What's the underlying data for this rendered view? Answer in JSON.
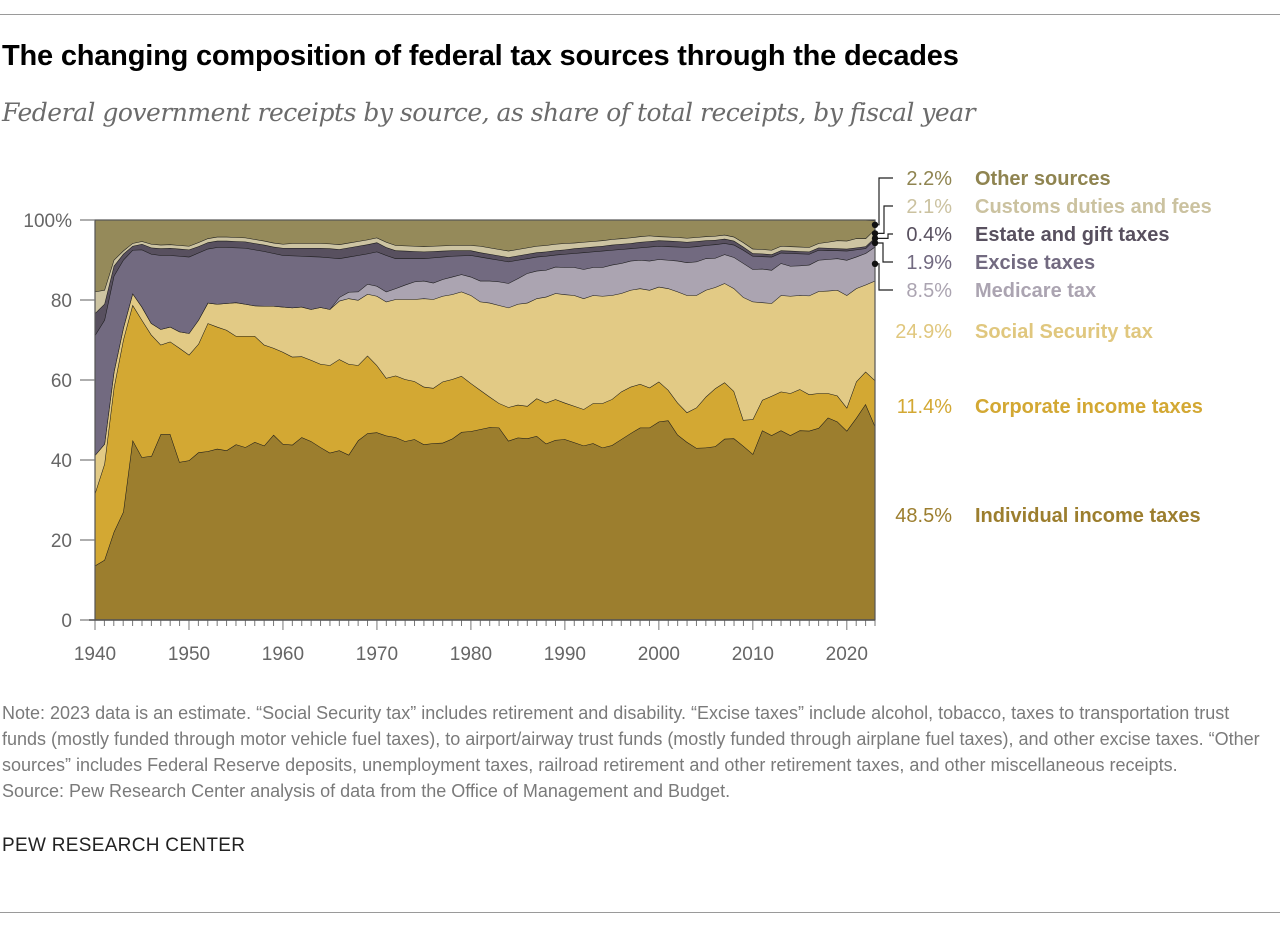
{
  "title": "The changing composition of federal tax sources through the decades",
  "subtitle": "Federal government receipts by source, as share of total receipts, by fiscal year",
  "note": "Note: 2023 data is an estimate. “Social Security tax” includes retirement and disability. “Excise taxes” include alcohol, tobacco, taxes to transportation trust funds (mostly funded through motor vehicle fuel taxes), to airport/airway trust funds (mostly funded through airplane fuel taxes), and other excise taxes. “Other sources” includes Federal Reserve deposits, unemployment taxes, railroad retirement and other retirement taxes, and other miscellaneous receipts.",
  "source": "Source: Pew Research Center analysis of data from the Office of Management and Budget.",
  "brand": "PEW RESEARCH CENTER",
  "chart_data": {
    "type": "area",
    "stacked": true,
    "xlim": [
      1940,
      2023
    ],
    "ylim": [
      0,
      100
    ],
    "x_ticks": [
      "1940",
      "1950",
      "1960",
      "1970",
      "1980",
      "1990",
      "2000",
      "2010",
      "2020"
    ],
    "y_ticks": [
      "0",
      "20",
      "40",
      "60",
      "80",
      "100%"
    ],
    "grid": false,
    "legend": "right, direct labels with 2023 values",
    "x": [
      1940,
      1941,
      1942,
      1943,
      1944,
      1945,
      1946,
      1947,
      1948,
      1949,
      1950,
      1951,
      1952,
      1953,
      1954,
      1955,
      1956,
      1957,
      1958,
      1959,
      1960,
      1961,
      1962,
      1963,
      1964,
      1965,
      1966,
      1967,
      1968,
      1969,
      1970,
      1971,
      1972,
      1973,
      1974,
      1975,
      1976,
      1977,
      1978,
      1979,
      1980,
      1981,
      1982,
      1983,
      1984,
      1985,
      1986,
      1987,
      1988,
      1989,
      1990,
      1991,
      1992,
      1993,
      1994,
      1995,
      1996,
      1997,
      1998,
      1999,
      2000,
      2001,
      2002,
      2003,
      2004,
      2005,
      2006,
      2007,
      2008,
      2009,
      2010,
      2011,
      2012,
      2013,
      2014,
      2015,
      2016,
      2017,
      2018,
      2019,
      2020,
      2021,
      2022,
      2023
    ],
    "series": [
      {
        "name": "Individual income taxes",
        "label": "48.5%",
        "color": "#9c7e2e",
        "text_color": "#9c7e2e",
        "values": [
          13.6,
          15.0,
          22.0,
          27.0,
          45.0,
          40.7,
          41.0,
          46.5,
          46.5,
          39.5,
          39.9,
          41.9,
          42.2,
          42.8,
          42.4,
          43.9,
          43.2,
          44.5,
          43.6,
          46.3,
          44.0,
          43.8,
          45.7,
          44.7,
          43.2,
          41.8,
          42.4,
          41.3,
          44.9,
          46.7,
          46.9,
          46.1,
          45.7,
          44.7,
          45.2,
          43.9,
          44.2,
          44.3,
          45.3,
          47.0,
          47.2,
          47.7,
          48.2,
          48.1,
          44.8,
          45.6,
          45.4,
          46.0,
          44.1,
          45.0,
          45.2,
          44.4,
          43.6,
          44.2,
          43.1,
          43.7,
          45.2,
          46.7,
          48.1,
          48.1,
          49.6,
          49.9,
          46.3,
          44.5,
          43.0,
          43.1,
          43.4,
          45.3,
          45.4,
          43.5,
          41.5,
          47.4,
          46.2,
          47.4,
          46.2,
          47.4,
          47.3,
          48.0,
          50.6,
          49.6,
          47.3,
          50.5,
          54.0,
          48.5
        ]
      },
      {
        "name": "Corporate income taxes",
        "label": "11.4%",
        "color": "#d3a833",
        "text_color": "#d3a833",
        "values": [
          18.1,
          24.0,
          36.0,
          43.0,
          33.8,
          34.3,
          30.3,
          22.3,
          23.1,
          28.5,
          26.4,
          27.1,
          32.0,
          30.5,
          30.1,
          27.1,
          27.8,
          26.5,
          25.2,
          21.7,
          23.0,
          22.0,
          20.2,
          20.3,
          20.8,
          21.9,
          22.8,
          22.7,
          18.8,
          19.4,
          16.8,
          14.4,
          15.4,
          15.5,
          14.5,
          14.4,
          13.8,
          15.3,
          14.9,
          14.0,
          12.0,
          9.8,
          7.6,
          6.1,
          8.4,
          8.2,
          8.1,
          9.4,
          10.2,
          10.2,
          9.1,
          9.1,
          9.1,
          10.0,
          11.1,
          11.5,
          11.9,
          11.6,
          10.9,
          10.0,
          10.0,
          7.6,
          8.0,
          7.4,
          10.1,
          12.7,
          14.5,
          14.1,
          11.8,
          6.5,
          8.7,
          7.6,
          9.8,
          9.7,
          10.5,
          10.3,
          9.1,
          8.7,
          6.1,
          6.5,
          5.8,
          9.1,
          8.1,
          11.4
        ]
      },
      {
        "name": "Social Security tax",
        "label": "24.9%",
        "color": "#e2ca85",
        "text_color": "#e0c77e",
        "values": [
          9.5,
          5.0,
          4.0,
          3.0,
          2.9,
          3.3,
          2.9,
          3.9,
          3.7,
          4.1,
          5.4,
          6.0,
          5.1,
          5.7,
          6.7,
          8.4,
          8.0,
          7.6,
          9.7,
          10.5,
          11.3,
          12.3,
          12.4,
          12.7,
          14.2,
          14.0,
          14.6,
          16.4,
          16.3,
          15.4,
          17.3,
          19.1,
          19.1,
          20.0,
          20.5,
          22.1,
          22.2,
          21.4,
          21.2,
          21.1,
          22.0,
          22.1,
          23.5,
          24.5,
          24.9,
          25.2,
          25.8,
          25.0,
          26.5,
          26.5,
          27.1,
          27.7,
          27.7,
          27.0,
          26.8,
          26.0,
          24.6,
          24.2,
          23.9,
          24.4,
          23.7,
          25.4,
          27.8,
          29.3,
          28.1,
          26.7,
          25.3,
          24.8,
          25.7,
          30.7,
          29.4,
          24.4,
          23.2,
          24.1,
          24.3,
          23.5,
          24.7,
          25.5,
          25.6,
          26.4,
          28.1,
          23.3,
          21.7,
          24.9
        ]
      },
      {
        "name": "Medicare tax",
        "label": "8.5%",
        "color": "#aba4b1",
        "text_color": "#aba4b1",
        "values": [
          0,
          0,
          0,
          0,
          0,
          0,
          0,
          0,
          0,
          0,
          0,
          0,
          0,
          0,
          0,
          0,
          0,
          0,
          0,
          0,
          0,
          0,
          0,
          0,
          0,
          0,
          0.9,
          1.6,
          2.1,
          2.5,
          2.5,
          2.5,
          2.7,
          3.6,
          4.4,
          4.4,
          4.1,
          4.2,
          4.4,
          4.3,
          4.6,
          5.2,
          5.5,
          5.9,
          6.1,
          6.4,
          7.4,
          6.9,
          6.7,
          6.6,
          6.8,
          7.0,
          7.3,
          7.0,
          7.2,
          7.6,
          7.5,
          7.3,
          7.1,
          7.3,
          6.9,
          7.1,
          7.7,
          8.2,
          8.4,
          7.9,
          7.3,
          7.2,
          7.8,
          8.5,
          8.1,
          8.4,
          8.3,
          8.0,
          7.5,
          7.4,
          7.7,
          7.8,
          7.9,
          7.9,
          8.8,
          7.9,
          7.9,
          8.5
        ]
      },
      {
        "name": "Excise taxes",
        "label": "1.9%",
        "color": "#726a80",
        "text_color": "#726a80",
        "values": [
          30.0,
          31.0,
          24.0,
          17.0,
          10.8,
          14.3,
          17.3,
          18.5,
          17.9,
          18.9,
          19.1,
          16.8,
          13.5,
          14.2,
          14.0,
          13.7,
          14.0,
          14.0,
          13.7,
          13.2,
          12.9,
          13.0,
          12.7,
          13.2,
          12.6,
          12.9,
          9.7,
          8.8,
          9.1,
          7.6,
          8.6,
          9.1,
          7.5,
          6.6,
          5.8,
          5.6,
          6.3,
          5.6,
          5.2,
          4.7,
          5.4,
          6.0,
          5.6,
          5.4,
          5.4,
          4.6,
          3.7,
          3.5,
          3.5,
          3.0,
          3.3,
          3.5,
          4.2,
          3.9,
          4.1,
          3.7,
          3.5,
          3.1,
          3.1,
          3.5,
          3.3,
          3.4,
          3.5,
          3.8,
          3.8,
          3.3,
          3.4,
          2.8,
          3.1,
          3.3,
          3.3,
          3.1,
          3.3,
          2.6,
          3.2,
          3.0,
          2.7,
          2.5,
          2.2,
          2.0,
          2.3,
          1.8,
          1.2,
          1.9
        ]
      },
      {
        "name": "Estate and gift taxes",
        "label": "0.4%",
        "color": "#58505f",
        "text_color": "#58505f",
        "values": [
          5.5,
          4.0,
          2.5,
          1.5,
          1.0,
          1.4,
          1.6,
          1.7,
          1.8,
          1.8,
          1.8,
          1.6,
          1.6,
          1.6,
          1.6,
          1.6,
          1.6,
          1.6,
          1.6,
          1.6,
          1.8,
          1.9,
          2.0,
          2.1,
          2.2,
          2.3,
          2.3,
          2.3,
          2.3,
          2.3,
          2.3,
          2.0,
          2.0,
          1.9,
          1.8,
          1.7,
          1.6,
          1.5,
          1.4,
          1.3,
          1.2,
          1.1,
          1.1,
          1.1,
          1.1,
          1.1,
          1.1,
          1.1,
          1.1,
          1.1,
          1.1,
          1.2,
          1.2,
          1.2,
          1.2,
          1.3,
          1.3,
          1.3,
          1.4,
          1.4,
          1.4,
          1.4,
          1.4,
          1.3,
          1.3,
          1.2,
          1.1,
          1.1,
          1.0,
          0.8,
          0.7,
          0.7,
          0.6,
          0.6,
          0.6,
          0.6,
          0.6,
          0.6,
          0.6,
          0.5,
          0.5,
          0.5,
          0.5,
          0.4
        ]
      },
      {
        "name": "Customs duties and fees",
        "label": "2.1%",
        "color": "#cdc4a2",
        "text_color": "#cbc2a0",
        "values": [
          5.4,
          3.5,
          1.5,
          0.8,
          0.7,
          0.7,
          0.9,
          0.9,
          0.9,
          0.9,
          0.9,
          1.0,
          1.0,
          1.0,
          1.0,
          1.0,
          1.0,
          1.0,
          1.0,
          1.0,
          1.0,
          1.2,
          1.2,
          1.2,
          1.2,
          1.2,
          1.2,
          1.2,
          1.2,
          1.2,
          1.2,
          1.3,
          1.3,
          1.3,
          1.3,
          1.3,
          1.3,
          1.3,
          1.3,
          1.3,
          1.3,
          1.6,
          1.6,
          1.6,
          1.6,
          1.6,
          1.6,
          1.6,
          1.6,
          1.6,
          1.6,
          1.4,
          1.4,
          1.4,
          1.4,
          1.4,
          1.4,
          1.4,
          1.4,
          1.4,
          1.0,
          1.0,
          1.0,
          1.0,
          1.0,
          1.0,
          1.0,
          1.0,
          1.0,
          1.1,
          1.1,
          1.1,
          1.1,
          1.1,
          1.1,
          1.1,
          1.1,
          1.1,
          1.5,
          2.0,
          2.0,
          2.3,
          2.0,
          2.1
        ]
      },
      {
        "name": "Other sources",
        "label": "2.2%",
        "color": "#958a5a",
        "text_color": "#8f8450",
        "values": [
          17.9,
          17.5,
          10.0,
          7.7,
          5.8,
          5.3,
          6.0,
          6.2,
          6.1,
          6.3,
          6.5,
          5.6,
          4.6,
          4.2,
          4.2,
          4.3,
          4.4,
          4.8,
          5.2,
          5.7,
          6.0,
          5.8,
          5.8,
          5.8,
          5.8,
          5.9,
          6.1,
          5.7,
          5.3,
          4.9,
          4.4,
          5.5,
          6.3,
          6.4,
          6.5,
          6.6,
          6.5,
          6.4,
          6.3,
          6.3,
          6.3,
          6.5,
          6.9,
          7.3,
          7.7,
          7.3,
          6.9,
          6.5,
          6.3,
          6.0,
          5.8,
          5.7,
          5.5,
          5.3,
          5.1,
          4.8,
          4.6,
          4.4,
          4.1,
          3.9,
          4.1,
          4.2,
          4.3,
          4.5,
          4.3,
          4.1,
          4.0,
          3.7,
          4.2,
          5.6,
          7.2,
          7.3,
          7.5,
          6.5,
          6.6,
          6.7,
          6.8,
          5.8,
          5.5,
          5.1,
          5.2,
          4.6,
          4.6,
          2.2
        ]
      }
    ]
  }
}
